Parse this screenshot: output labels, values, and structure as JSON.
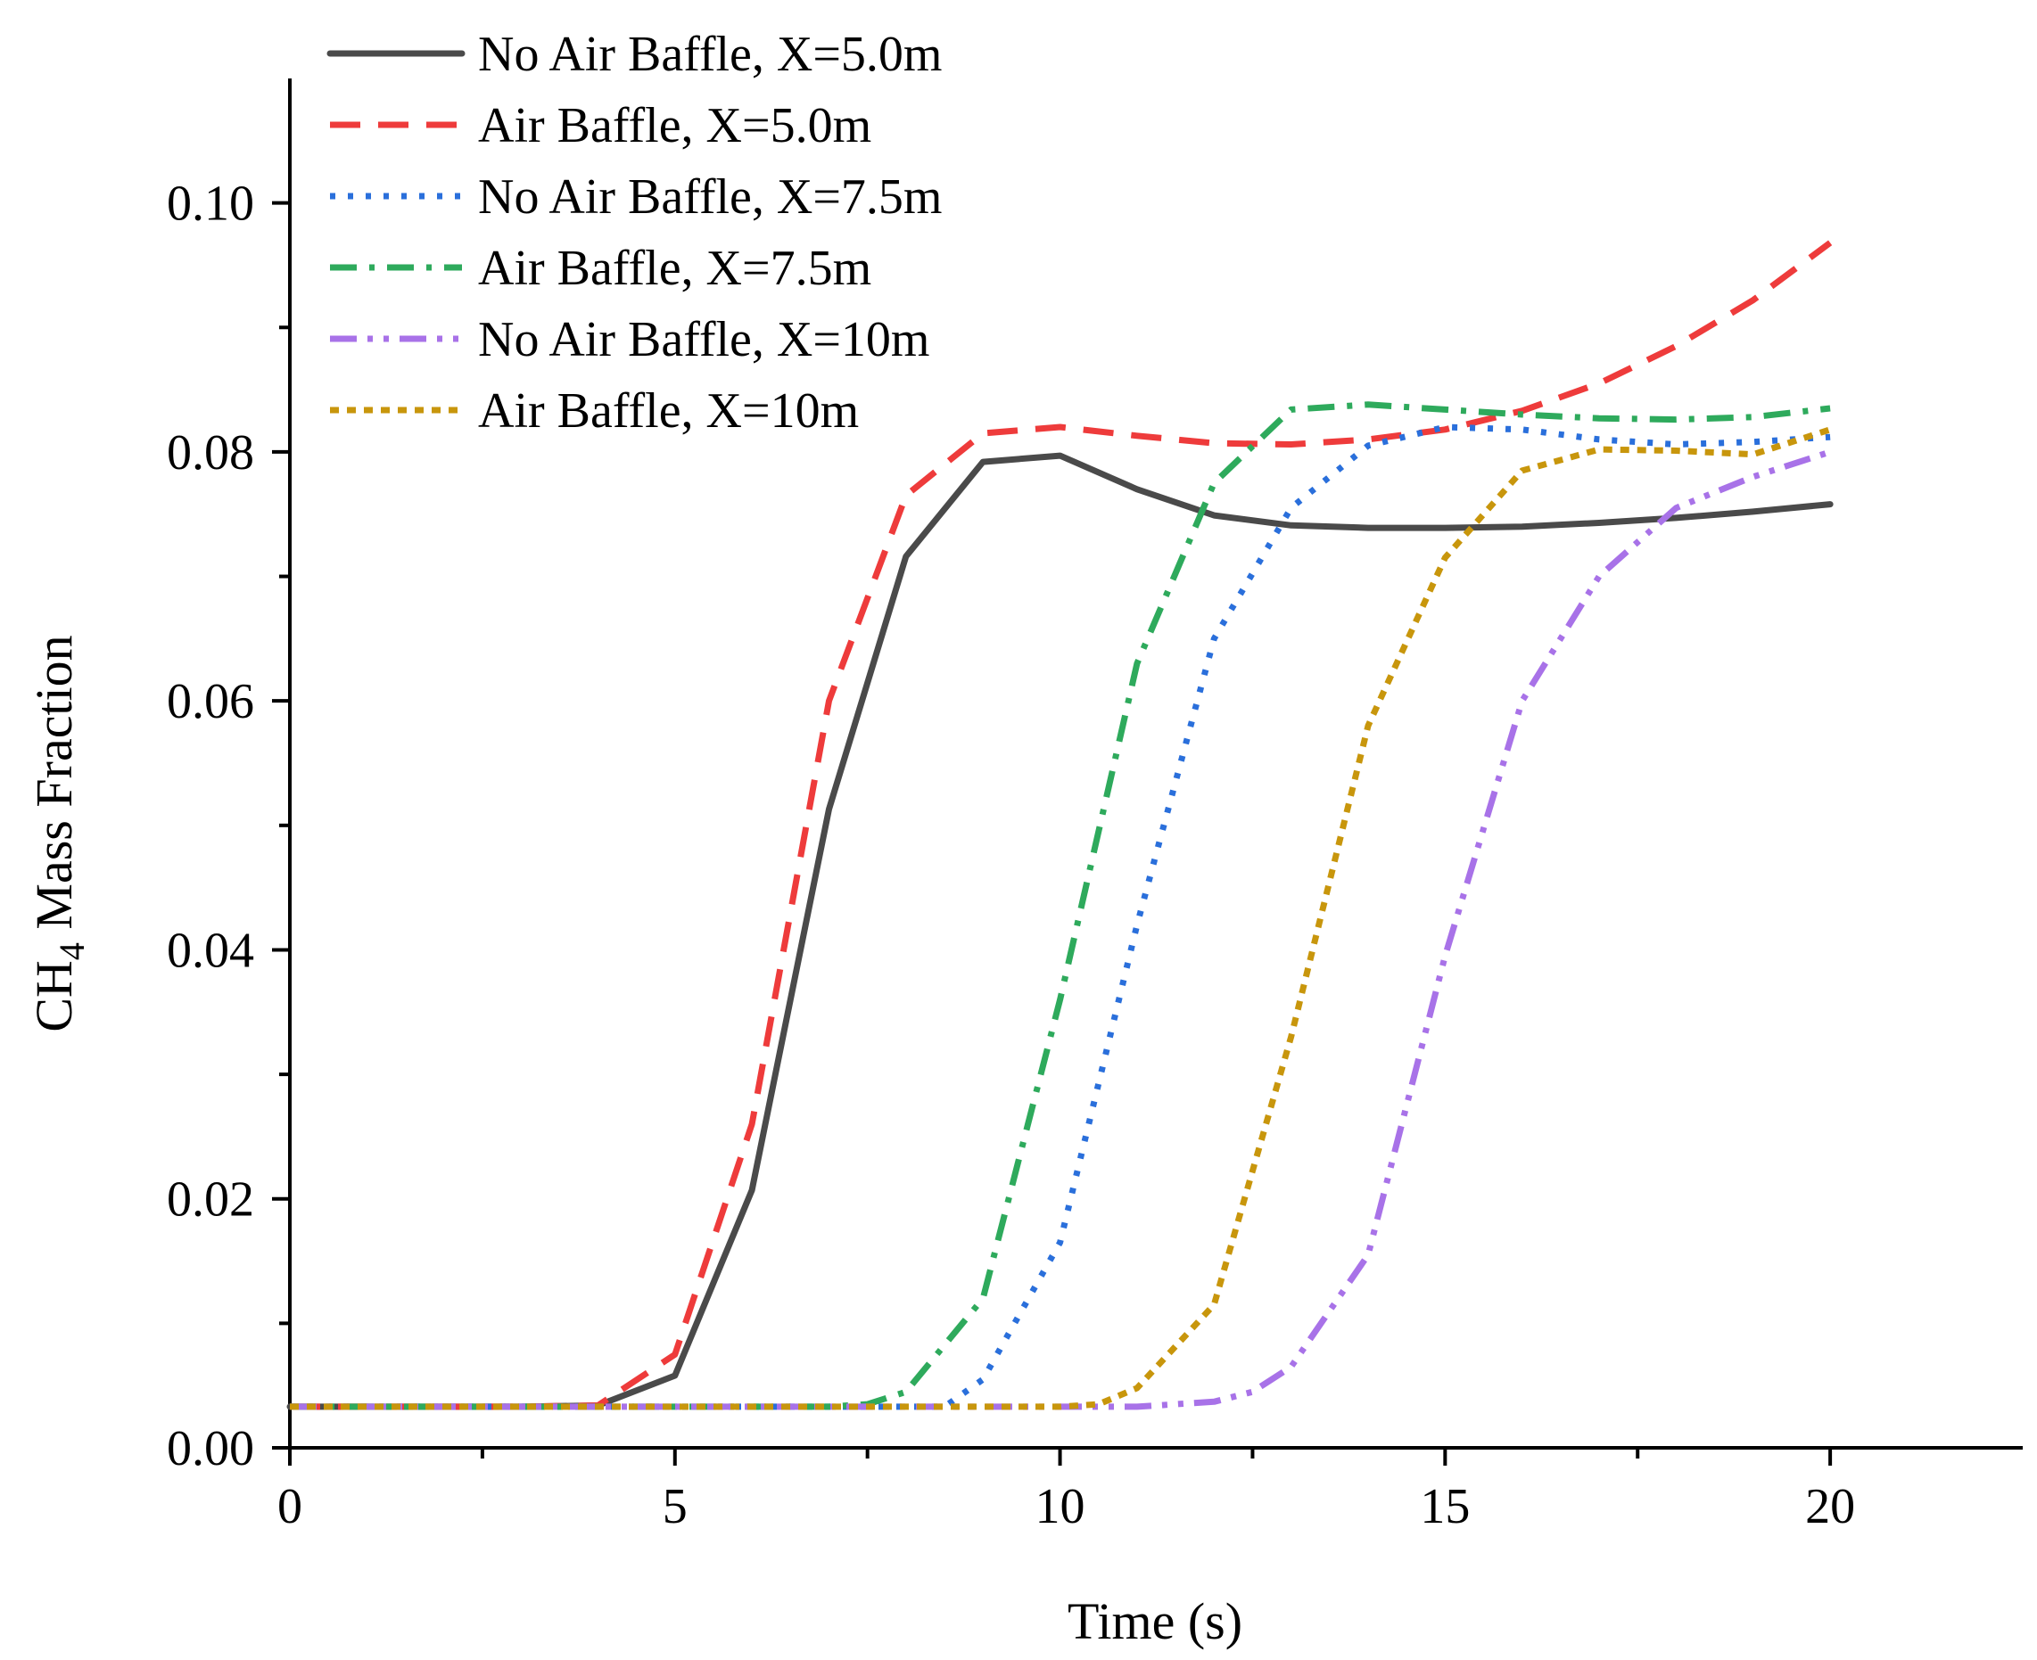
{
  "chart_data": {
    "type": "line",
    "title": "",
    "xlabel": "Time (s)",
    "ylabel": {
      "base": "CH",
      "subscript": "4",
      "rest": " Mass Fraction"
    },
    "xlim": [
      0,
      22.5
    ],
    "ylim": [
      0,
      0.11
    ],
    "xticks": [
      0,
      5,
      10,
      15,
      20
    ],
    "xtick_labels": [
      "0",
      "5",
      "10",
      "15",
      "20"
    ],
    "yticks": [
      0,
      0.02,
      0.04,
      0.06,
      0.08,
      0.1
    ],
    "ytick_labels": [
      "0.00",
      "0.02",
      "0.04",
      "0.06",
      "0.08",
      "0.10"
    ],
    "legend_position": "top-left",
    "series": [
      {
        "name": "No Air Baffle, X=5.0m",
        "color": "#4a4a4a",
        "style": "solid",
        "x": [
          0,
          1,
          2,
          3,
          4,
          5,
          6,
          7,
          8,
          9,
          10,
          11,
          12,
          13,
          14,
          15,
          16,
          17,
          18,
          19,
          20
        ],
        "y": [
          0.0033,
          0.0033,
          0.0033,
          0.0033,
          0.0034,
          0.0058,
          0.0207,
          0.0513,
          0.0716,
          0.0792,
          0.0797,
          0.077,
          0.0749,
          0.0741,
          0.0739,
          0.0739,
          0.074,
          0.0743,
          0.0747,
          0.0752,
          0.0758
        ]
      },
      {
        "name": "Air Baffle, X=5.0m",
        "color": "#ee3b3b",
        "style": "dash",
        "x": [
          0,
          1,
          2,
          3,
          4,
          5,
          6,
          7,
          8,
          9,
          10,
          11,
          12,
          13,
          14,
          15,
          16,
          17,
          18,
          19,
          20
        ],
        "y": [
          0.0033,
          0.0033,
          0.0033,
          0.0033,
          0.0034,
          0.0075,
          0.026,
          0.06,
          0.0765,
          0.0815,
          0.082,
          0.0813,
          0.0807,
          0.0806,
          0.081,
          0.0818,
          0.0833,
          0.0855,
          0.0885,
          0.0922,
          0.0968
        ]
      },
      {
        "name": "No Air Baffle, X=7.5m",
        "color": "#2a6fdb",
        "style": "dot",
        "x": [
          0,
          1,
          2,
          3,
          4,
          5,
          6,
          7,
          8,
          8.5,
          9,
          10,
          11,
          12,
          13,
          14,
          15,
          16,
          17,
          18,
          19,
          20
        ],
        "y": [
          0.0033,
          0.0033,
          0.0033,
          0.0033,
          0.0033,
          0.0033,
          0.0033,
          0.0033,
          0.0033,
          0.0033,
          0.0055,
          0.0165,
          0.042,
          0.065,
          0.0755,
          0.0805,
          0.082,
          0.0818,
          0.081,
          0.0806,
          0.0808,
          0.0812
        ]
      },
      {
        "name": "Air Baffle, X=7.5m",
        "color": "#2eaa5c",
        "style": "dashdot",
        "x": [
          0,
          1,
          2,
          3,
          4,
          5,
          6,
          7,
          7.5,
          8,
          9,
          10,
          11,
          12,
          13,
          14,
          15,
          16,
          17,
          18,
          19,
          20
        ],
        "y": [
          0.0033,
          0.0033,
          0.0033,
          0.0033,
          0.0033,
          0.0033,
          0.0033,
          0.0033,
          0.0035,
          0.0045,
          0.012,
          0.036,
          0.063,
          0.0775,
          0.0834,
          0.0838,
          0.0834,
          0.083,
          0.0827,
          0.0826,
          0.0828,
          0.0835
        ]
      },
      {
        "name": "No Air Baffle, X=10m",
        "color": "#a872e8",
        "style": "dashdotdot",
        "x": [
          0,
          1,
          2,
          3,
          4,
          5,
          6,
          7,
          8,
          9,
          10,
          11,
          12,
          12.5,
          13,
          14,
          15,
          16,
          17,
          18,
          19,
          20
        ],
        "y": [
          0.0033,
          0.0033,
          0.0033,
          0.0033,
          0.0033,
          0.0033,
          0.0033,
          0.0033,
          0.0033,
          0.0033,
          0.0033,
          0.0033,
          0.0037,
          0.0045,
          0.0065,
          0.0155,
          0.0395,
          0.06,
          0.07,
          0.0755,
          0.078,
          0.08
        ]
      },
      {
        "name": "Air Baffle, X=10m",
        "color": "#c8960c",
        "style": "shortdot",
        "x": [
          0,
          1,
          2,
          3,
          4,
          5,
          6,
          7,
          8,
          9,
          10,
          10.5,
          11,
          12,
          13,
          14,
          15,
          16,
          17,
          18,
          19,
          20
        ],
        "y": [
          0.0033,
          0.0033,
          0.0033,
          0.0033,
          0.0033,
          0.0033,
          0.0033,
          0.0033,
          0.0033,
          0.0033,
          0.0033,
          0.0035,
          0.0048,
          0.0115,
          0.033,
          0.058,
          0.0715,
          0.0785,
          0.0802,
          0.0801,
          0.0798,
          0.0818
        ]
      }
    ]
  }
}
